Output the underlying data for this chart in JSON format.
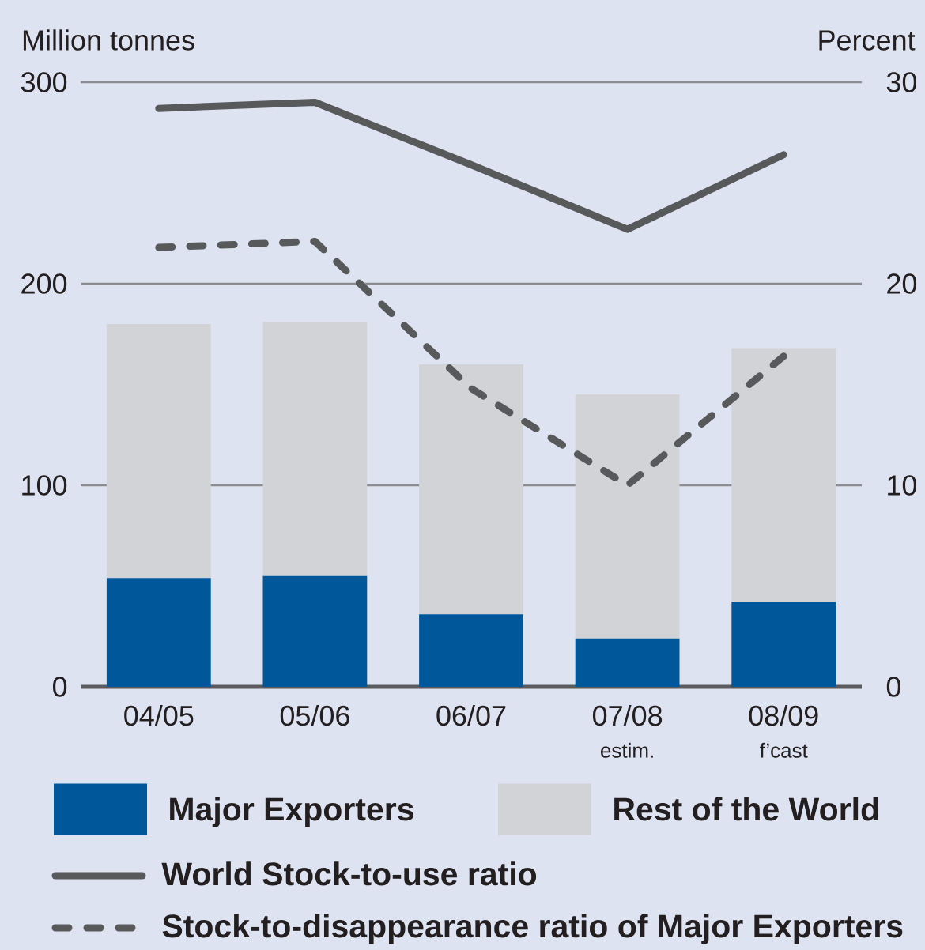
{
  "chart_data": {
    "type": "bar",
    "stacked": true,
    "ylabel": "Million tonnes",
    "y2label": "Percent",
    "categories": [
      "04/05",
      "05/06",
      "06/07",
      "07/08",
      "08/09"
    ],
    "series": [
      {
        "name": "Major Exporters",
        "color": "#00579a",
        "values": [
          54,
          55,
          36,
          24,
          42
        ]
      },
      {
        "name": "Rest of the World",
        "color": "#d2d3d6",
        "values": [
          126,
          126,
          124,
          121,
          126
        ]
      },
      {
        "name": "World Stock-to-use ratio",
        "type": "line",
        "axis": "y2",
        "line_style": "solid",
        "color": "#58595b",
        "values": [
          28.7,
          29.0,
          25.9,
          22.7,
          26.4
        ]
      },
      {
        "name": "Stock-to-disappearance ratio of Major Exporters",
        "type": "line",
        "axis": "y2",
        "line_style": "dashed",
        "color": "#58595b",
        "values": [
          21.8,
          22.1,
          14.8,
          10.0,
          16.4
        ]
      }
    ],
    "ylim": [
      0,
      300
    ],
    "yticks": [
      0,
      100,
      200,
      300
    ],
    "y2lim": [
      0,
      30
    ],
    "y2ticks": [
      0,
      10,
      20,
      30
    ],
    "grid": "y",
    "legend": "bottom",
    "annotations": [
      "estim.",
      "f’cast"
    ]
  }
}
